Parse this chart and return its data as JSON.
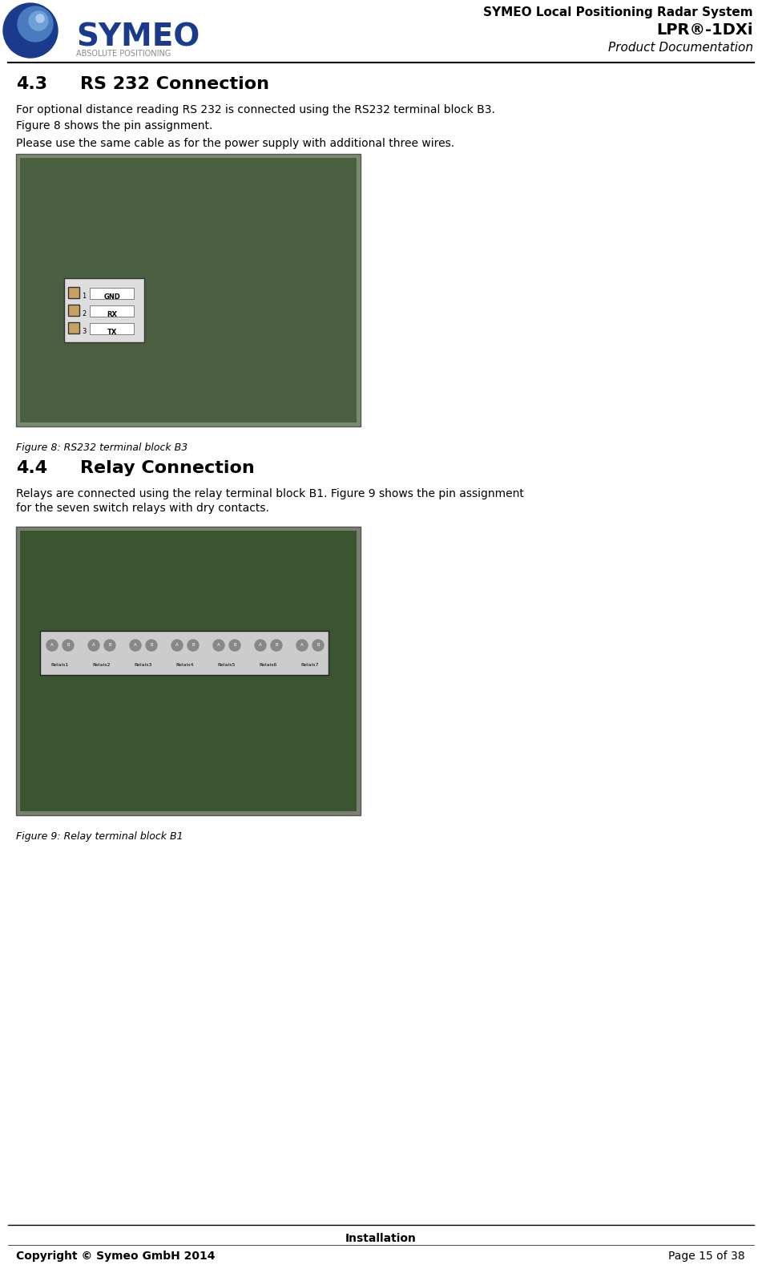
{
  "page_width": 9.51,
  "page_height": 15.93,
  "bg_color": "#ffffff",
  "header": {
    "logo_text": "SYMEO",
    "logo_subtext": "ABSOLUTE POSITIONING",
    "logo_color": "#1a3a8c",
    "title_line1": "SYMEO Local Positioning Radar System",
    "title_line2": "LPR®-1DXi",
    "title_line3": "Product Documentation",
    "separator_color": "#000000"
  },
  "section_43": {
    "number": "4.3",
    "title": "RS 232 Connection",
    "body1": "For optional distance reading RS 232 is connected using the RS232 terminal block B3.",
    "body2": "Figure 8 shows the pin assignment.",
    "body3": "Please use the same cable as for the power supply with additional three wires.",
    "fig_caption": "Figure 8: RS232 terminal block B3"
  },
  "section_44": {
    "number": "4.4",
    "title": "Relay Connection",
    "body1": "Relays are connected using the relay terminal block B1. Figure 9 shows the pin assignment",
    "body2": "for the seven switch relays with dry contacts.",
    "fig_caption": "Figure 9: Relay terminal block B1"
  },
  "footer": {
    "center_text": "Installation",
    "left_text": "Copyright © Symeo GmbH 2014",
    "right_text": "Page 15 of 38",
    "separator_color": "#000000"
  }
}
